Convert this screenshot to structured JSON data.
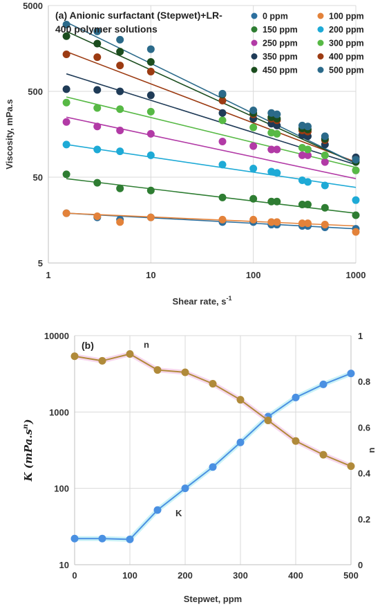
{
  "chart_data": [
    {
      "type": "scatter",
      "title_lines": [
        "(a) Anionic surfactant (Stepwet)+LR-",
        "400 polymer solutions"
      ],
      "xlabel": "Shear rate, s",
      "xlabel_sup": "-1",
      "ylabel": "Viscosity, mPa.s",
      "x_scale": "log",
      "y_scale": "log",
      "xlim": [
        1,
        1000
      ],
      "ylim": [
        5,
        5000
      ],
      "x_ticks": [
        1,
        10,
        100,
        1000
      ],
      "x_tick_labels": [
        "1",
        "10",
        "100",
        "1000"
      ],
      "y_ticks": [
        5,
        50,
        500,
        5000
      ],
      "y_tick_labels": [
        "5",
        "50",
        "500",
        "5000"
      ],
      "grid": true,
      "legend_position": "top-right",
      "x": [
        1.5,
        3,
        5,
        10,
        50,
        100,
        150,
        170,
        300,
        340,
        500,
        1000
      ],
      "series": [
        {
          "name": "0 ppm",
          "color": "#2c6f9e",
          "values": [
            19,
            17,
            16,
            17,
            15,
            15,
            14,
            14,
            13.5,
            13.5,
            13,
            12.5
          ],
          "fit": [
            19,
            12.5
          ]
        },
        {
          "name": "100 ppm",
          "color": "#e3823a",
          "values": [
            19,
            17.5,
            15,
            17,
            16,
            16,
            15,
            15,
            14.5,
            14.5,
            14,
            11.5
          ],
          "fit": [
            19,
            13.5
          ]
        },
        {
          "name": "150 ppm",
          "color": "#2e7d32",
          "values": [
            54,
            43,
            37,
            35,
            29,
            28,
            26,
            26,
            24,
            24,
            22,
            18
          ],
          "fit": [
            48,
            19
          ]
        },
        {
          "name": "200 ppm",
          "color": "#1eaad6",
          "values": [
            120,
            105,
            100,
            90,
            70,
            63,
            58,
            56,
            46,
            44,
            40,
            27
          ],
          "fit": [
            120,
            38
          ]
        },
        {
          "name": "250 ppm",
          "color": "#b23aa6",
          "values": [
            220,
            195,
            175,
            160,
            130,
            115,
            105,
            105,
            90,
            90,
            75,
            60
          ],
          "fit": [
            250,
            48
          ]
        },
        {
          "name": "300 ppm",
          "color": "#57b945",
          "values": [
            370,
            320,
            310,
            290,
            230,
            190,
            165,
            160,
            110,
            105,
            90,
            60
          ],
          "fit": [
            430,
            65
          ]
        },
        {
          "name": "350 ppm",
          "color": "#1f3b57",
          "values": [
            530,
            520,
            500,
            450,
            280,
            240,
            210,
            200,
            155,
            150,
            120,
            85
          ],
          "fit": [
            800,
            70
          ]
        },
        {
          "name": "400 ppm",
          "color": "#9c3b12",
          "values": [
            1350,
            1250,
            1000,
            850,
            390,
            270,
            240,
            230,
            175,
            170,
            135,
            80
          ],
          "fit": [
            1450,
            75
          ]
        },
        {
          "name": "450 ppm",
          "color": "#1b4d1e",
          "values": [
            2200,
            1800,
            1450,
            1100,
            460,
            280,
            250,
            240,
            185,
            180,
            140,
            75
          ],
          "fit": [
            2500,
            72
          ]
        },
        {
          "name": "500 ppm",
          "color": "#2b6a8a",
          "values": [
            3000,
            2500,
            2000,
            1550,
            470,
            300,
            280,
            270,
            200,
            195,
            150,
            80
          ],
          "fit": [
            3200,
            72
          ]
        }
      ]
    },
    {
      "type": "line",
      "title": "(b)",
      "xlabel": "Stepwet, ppm",
      "ylabel_left": "K (mPa.s",
      "ylabel_left_sup": "n",
      "ylabel_left_close": ")",
      "ylabel_right": "n",
      "x_scale": "linear",
      "y_left_scale": "log",
      "xlim": [
        0,
        500
      ],
      "ylim_left": [
        10,
        10000
      ],
      "ylim_right": [
        0,
        1
      ],
      "x_ticks": [
        0,
        100,
        200,
        300,
        400,
        500
      ],
      "x_tick_labels": [
        "0",
        "100",
        "200",
        "300",
        "400",
        "500"
      ],
      "y_left_ticks": [
        10,
        100,
        1000,
        10000
      ],
      "y_left_tick_labels": [
        "10",
        "100",
        "1000",
        "10000"
      ],
      "y_right_ticks": [
        0,
        0.2,
        0.4,
        0.6,
        0.8,
        1
      ],
      "y_right_tick_labels": [
        "0",
        "0.2",
        "0.4",
        "0.6",
        "0.8",
        "1"
      ],
      "grid": true,
      "x": [
        0,
        50,
        100,
        150,
        200,
        250,
        300,
        350,
        400,
        450,
        500
      ],
      "series": [
        {
          "name": "K",
          "axis": "left",
          "color": "#4a90e2",
          "halo": "#9fe8f0",
          "label_at_index": 3,
          "values": [
            22,
            22,
            21.5,
            52,
            100,
            190,
            400,
            870,
            1550,
            2300,
            3200
          ]
        },
        {
          "name": "n",
          "axis": "right",
          "color": "#b08a3a",
          "halo": "#f0b6df",
          "label_at_index": 3,
          "values": [
            0.91,
            0.89,
            0.92,
            0.85,
            0.84,
            0.79,
            0.72,
            0.63,
            0.54,
            0.48,
            0.43
          ]
        }
      ]
    }
  ]
}
